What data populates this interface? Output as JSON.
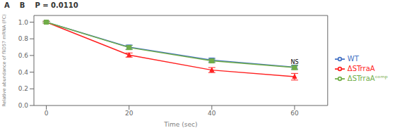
{
  "chart_data": {
    "type": "line",
    "xlabel": "Time (sec)",
    "ylabel": "Relative abundance of fliD57 mRNA (FC)",
    "x": [
      0,
      20,
      40,
      60
    ],
    "series": [
      {
        "name": "WT",
        "color": "#4472C4",
        "marker": "square",
        "values": [
          1.0,
          0.7,
          0.545,
          0.46
        ],
        "errors": [
          0.01,
          0.025,
          0.022,
          0.022
        ]
      },
      {
        "name": "ΔSTrraA",
        "color": "#FF2020",
        "marker": "triangle",
        "values": [
          1.0,
          0.605,
          0.425,
          0.345
        ],
        "errors": [
          0.01,
          0.025,
          0.03,
          0.04
        ]
      },
      {
        "name": "ΔSTrraAᶜᵒᵐᵖ",
        "color": "#70AD47",
        "marker": "square",
        "values": [
          1.0,
          0.695,
          0.535,
          0.455
        ],
        "errors": [
          0.01,
          0.025,
          0.022,
          0.025
        ]
      }
    ],
    "xlim": [
      -3,
      68
    ],
    "ylim": [
      0.0,
      1.08
    ],
    "xticks": [
      0,
      20,
      40,
      60
    ],
    "yticks": [
      {
        "value": 0.0,
        "label": "0.0"
      },
      0.2,
      0.4,
      0.6,
      0.8,
      {
        "value": 1.0,
        "label": "1.0"
      }
    ],
    "grid": false,
    "legend": "right",
    "annotations": [
      {
        "text": "A"
      },
      {
        "text": "B"
      },
      {
        "text": "P = 0.0110"
      },
      {
        "text": "NS",
        "x": 60,
        "y": 0.458
      }
    ]
  }
}
